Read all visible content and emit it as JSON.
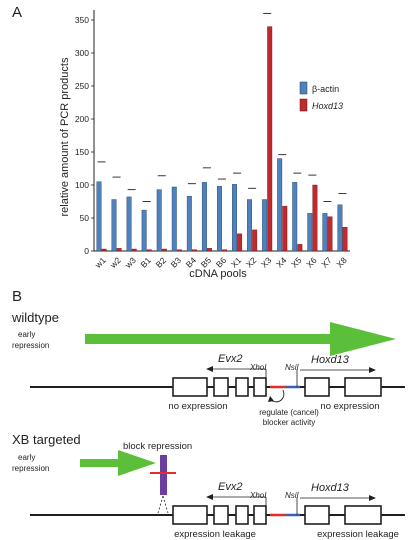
{
  "panel_a": {
    "letter": "A",
    "chart_data": {
      "type": "bar",
      "xlabel": "cDNA pools",
      "ylabel": "relative amount of PCR products",
      "ylim": [
        0,
        350
      ],
      "yticks": [
        "0",
        "50",
        "100",
        "150",
        "200",
        "250",
        "300",
        "350"
      ],
      "categories": [
        "w1",
        "w2",
        "w3",
        "B1",
        "B2",
        "B3",
        "B4",
        "B5",
        "B6",
        "X1",
        "X2",
        "X3",
        "X4",
        "X5",
        "X6",
        "X7",
        "X8"
      ],
      "series": [
        {
          "name": "β-actin",
          "color": "#4f81bd",
          "values": [
            105,
            78,
            82,
            62,
            93,
            97,
            83,
            104,
            98,
            101,
            78,
            78,
            140,
            104,
            57,
            57,
            70
          ]
        },
        {
          "name": "Hoxd13",
          "color": "#c0292e",
          "values": [
            3,
            4,
            3,
            2,
            3,
            2,
            2,
            4,
            2,
            26,
            32,
            340,
            68,
            10,
            100,
            52,
            36
          ]
        }
      ],
      "error_caps": [
        135,
        112,
        93,
        75,
        114,
        0,
        102,
        126,
        109,
        118,
        95,
        0,
        146,
        118,
        115,
        75,
        87
      ],
      "top_cap": 360
    }
  },
  "panel_b": {
    "letter": "B",
    "wildtype": {
      "title": "wildtype",
      "subtitle": "early repression",
      "evx2": "Evx2",
      "hoxd13": "Hoxd13",
      "xhoi": "XhoI",
      "nsii": "NsiI",
      "left_expr": "no expression",
      "right_expr": "no expression",
      "regulate": "regulate (cancel) blocker activity"
    },
    "xb": {
      "title": "XB targeted",
      "subtitle": "early repression",
      "block": "block repression",
      "evx2": "Evx2",
      "hoxd13": "Hoxd13",
      "xhoi": "XhoI",
      "nsii": "NsiI",
      "left_expr": "expression leakage",
      "right_expr": "expression leakage"
    },
    "colors": {
      "arrow_green": "#5cbf3a",
      "red": "#e32d2d",
      "blue": "#3b5fc0",
      "blocker": "#6a3fa0"
    }
  }
}
